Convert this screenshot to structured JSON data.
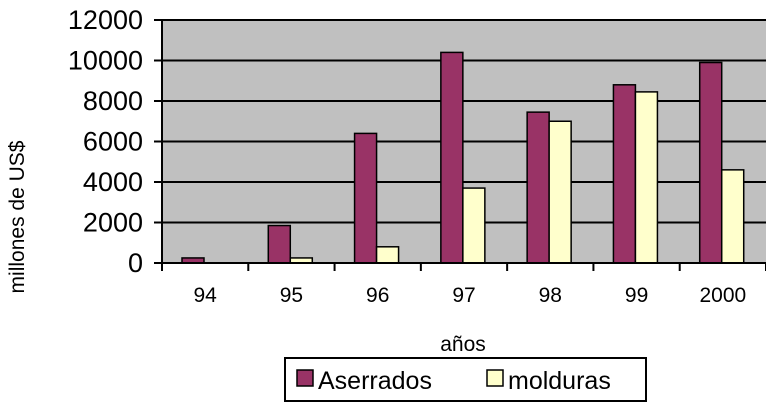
{
  "chart_data": {
    "type": "bar",
    "title": "",
    "xlabel": "años",
    "ylabel": "millones de US$",
    "categories": [
      "94",
      "95",
      "96",
      "97",
      "98",
      "99",
      "2000"
    ],
    "series": [
      {
        "name": "Aserrados",
        "values": [
          250,
          1850,
          6400,
          10400,
          7450,
          8800,
          9900
        ],
        "color": "#993366"
      },
      {
        "name": "molduras",
        "values": [
          0,
          250,
          800,
          3700,
          7000,
          8450,
          4600
        ],
        "color": "#ffffcc"
      }
    ],
    "ylim": [
      0,
      12000
    ],
    "yticks": [
      0,
      2000,
      4000,
      6000,
      8000,
      10000,
      12000
    ],
    "grid": true,
    "legend_position": "bottom",
    "plot_background": "#c0c0c0"
  }
}
